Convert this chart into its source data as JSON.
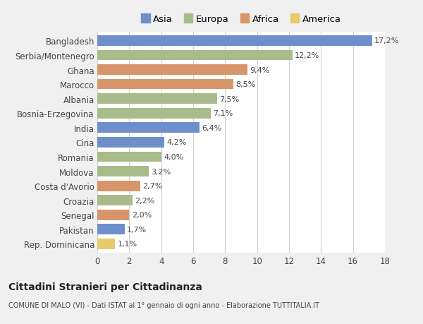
{
  "categories": [
    "Bangladesh",
    "Serbia/Montenegro",
    "Ghana",
    "Marocco",
    "Albania",
    "Bosnia-Erzegovina",
    "India",
    "Cina",
    "Romania",
    "Moldova",
    "Costa d'Avorio",
    "Croazia",
    "Senegal",
    "Pakistan",
    "Rep. Dominicana"
  ],
  "values": [
    17.2,
    12.2,
    9.4,
    8.5,
    7.5,
    7.1,
    6.4,
    4.2,
    4.0,
    3.2,
    2.7,
    2.2,
    2.0,
    1.7,
    1.1
  ],
  "labels": [
    "17,2%",
    "12,2%",
    "9,4%",
    "8,5%",
    "7,5%",
    "7,1%",
    "6,4%",
    "4,2%",
    "4,0%",
    "3,2%",
    "2,7%",
    "2,2%",
    "2,0%",
    "1,7%",
    "1,1%"
  ],
  "colors": [
    "#6e8fcb",
    "#a8bb8a",
    "#d9956a",
    "#d9956a",
    "#a8bb8a",
    "#a8bb8a",
    "#6e8fcb",
    "#6e8fcb",
    "#a8bb8a",
    "#a8bb8a",
    "#d9956a",
    "#a8bb8a",
    "#d9956a",
    "#6e8fcb",
    "#e8c96e"
  ],
  "legend_labels": [
    "Asia",
    "Europa",
    "Africa",
    "America"
  ],
  "legend_colors": [
    "#6e8fcb",
    "#a8bb8a",
    "#d9956a",
    "#e8c96e"
  ],
  "xlim": [
    0,
    18
  ],
  "xticks": [
    0,
    2,
    4,
    6,
    8,
    10,
    12,
    14,
    16,
    18
  ],
  "title": "Cittadini Stranieri per Cittadinanza",
  "subtitle": "COMUNE DI MALO (VI) - Dati ISTAT al 1° gennaio di ogni anno - Elaborazione TUTTITALIA.IT",
  "fig_bg_color": "#f0f0f0",
  "ax_bg_color": "#ffffff",
  "grid_color": "#d0d0d0",
  "text_color": "#444444",
  "bar_height": 0.72
}
